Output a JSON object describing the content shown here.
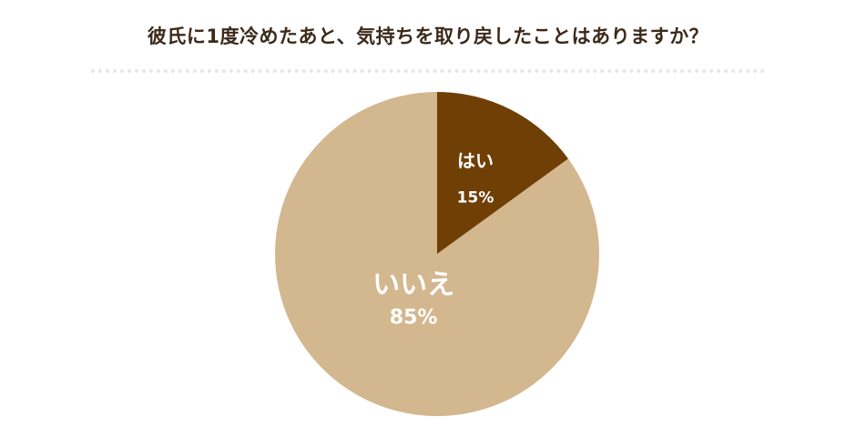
{
  "chart_data": {
    "type": "pie",
    "title": "彼氏に1度冷めたあと、気持ちを取り戻したことはありますか？",
    "slices": [
      {
        "label": "はい",
        "value": 15,
        "value_label": "15%",
        "color": "#6f3f06"
      },
      {
        "label": "いいえ",
        "value": 85,
        "value_label": "85%",
        "color": "#d3b78f"
      }
    ],
    "start_angle_deg": 0,
    "direction": "clockwise",
    "legend": "none"
  }
}
